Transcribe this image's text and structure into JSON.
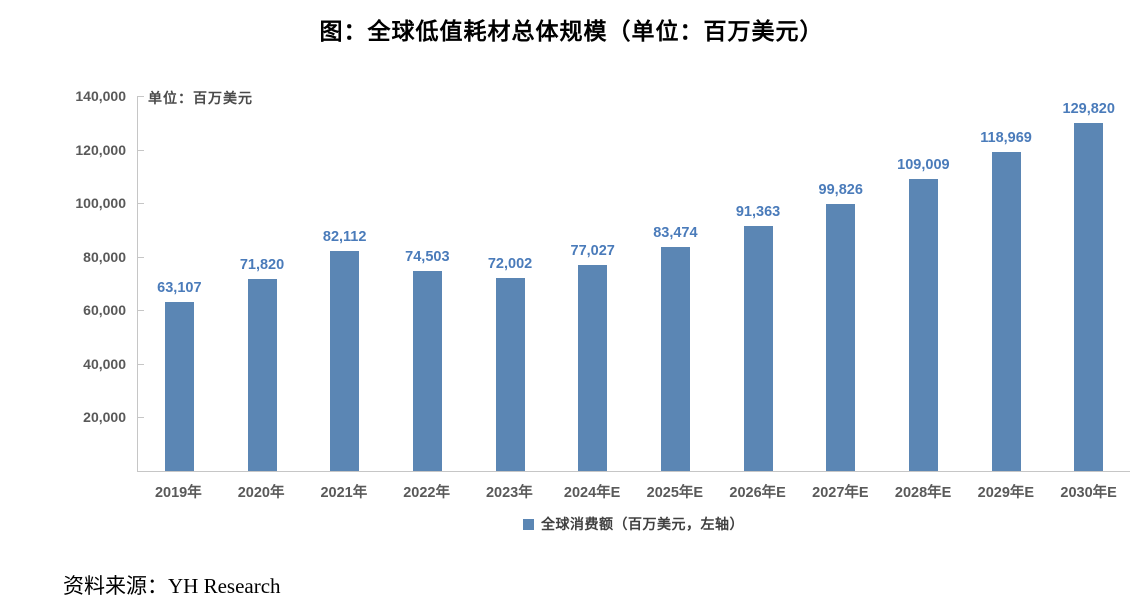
{
  "title": "图：全球低值耗材总体规模（单位：百万美元）",
  "source": "资料来源：YH Research",
  "chart_data": {
    "type": "bar",
    "title": "图：全球低值耗材总体规模（单位：百万美元）",
    "unit_label": "单位：百万美元",
    "categories": [
      "2019年",
      "2020年",
      "2021年",
      "2022年",
      "2023年",
      "2024年E",
      "2025年E",
      "2026年E",
      "2027年E",
      "2028年E",
      "2029年E",
      "2030年E"
    ],
    "values": [
      63107,
      71820,
      82112,
      74503,
      72002,
      77027,
      83474,
      91363,
      99826,
      109009,
      118969,
      129820
    ],
    "value_labels": [
      "63,107",
      "71,820",
      "82,112",
      "74,503",
      "72,002",
      "77,027",
      "83,474",
      "91,363",
      "99,826",
      "109,009",
      "118,969",
      "129,820"
    ],
    "legend": "全球消费额（百万美元，左轴）",
    "legend_position": "bottom",
    "xlabel": "",
    "ylabel": "",
    "ylim": [
      0,
      140000
    ],
    "yticks": [
      20000,
      40000,
      60000,
      80000,
      100000,
      120000,
      140000
    ],
    "ytick_labels": [
      "20,000",
      "40,000",
      "60,000",
      "80,000",
      "100,000",
      "120,000",
      "140,000"
    ],
    "grid": false,
    "colors": {
      "bar": "#5b86b4",
      "value_label": "#4a7bba",
      "axis_text": "#595959",
      "axis_line": "#c6c6c6",
      "title_text": "#000000"
    }
  }
}
